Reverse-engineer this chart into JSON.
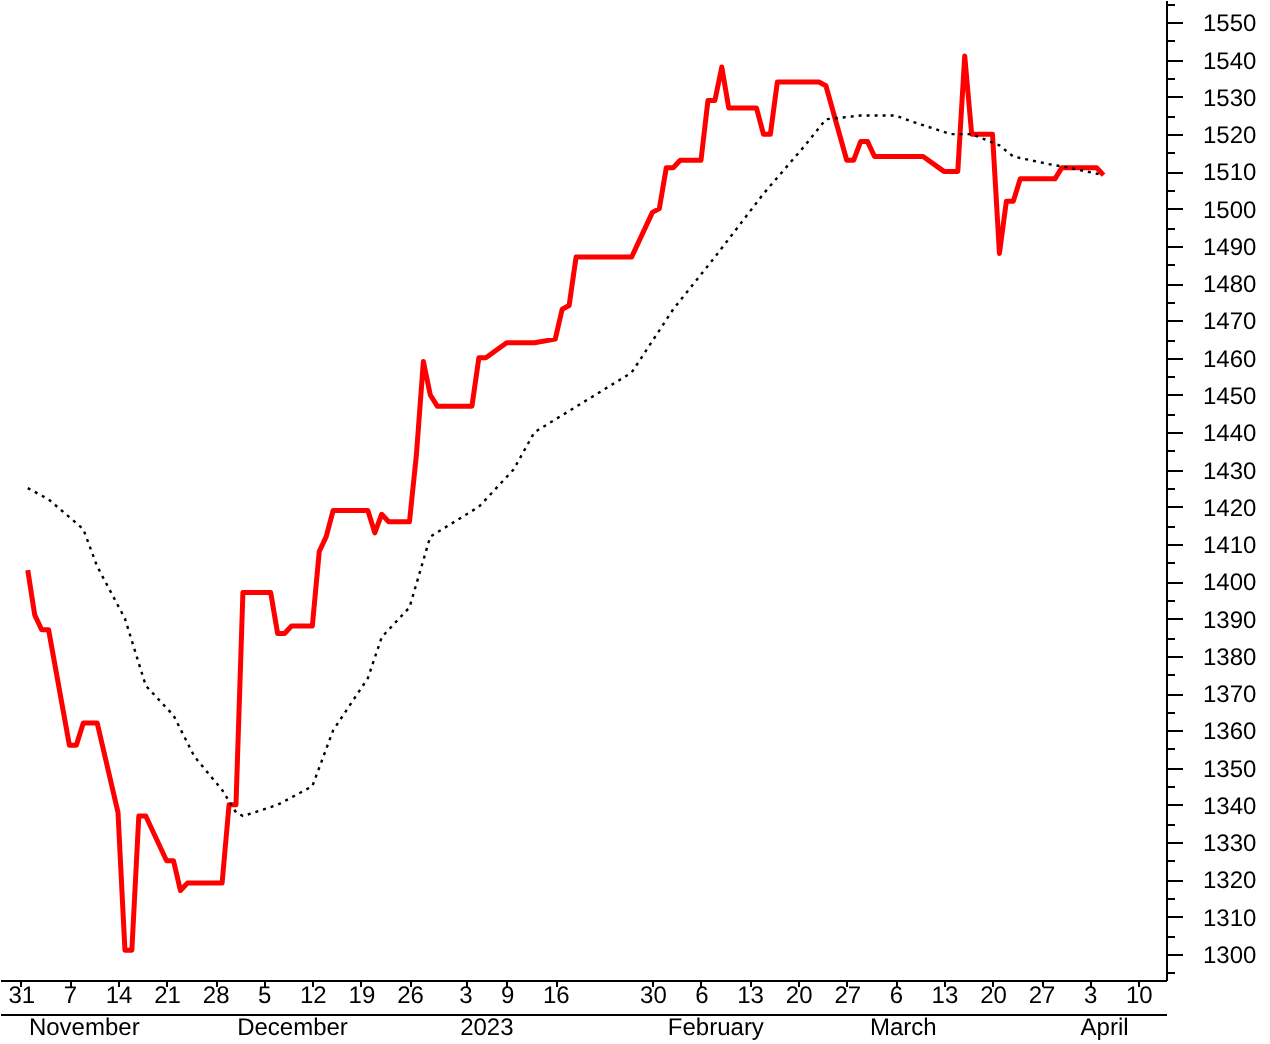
{
  "chart_data": {
    "type": "line",
    "series": [
      {
        "color": "#ff0000",
        "line_style": "solid",
        "x": [
          "2022-11-01",
          "2022-11-02",
          "2022-11-03",
          "2022-11-04",
          "2022-11-07",
          "2022-11-08",
          "2022-11-09",
          "2022-11-10",
          "2022-11-11",
          "2022-11-14",
          "2022-11-15",
          "2022-11-16",
          "2022-11-17",
          "2022-11-18",
          "2022-11-21",
          "2022-11-22",
          "2022-11-23",
          "2022-11-24",
          "2022-11-25",
          "2022-11-28",
          "2022-11-29",
          "2022-11-30",
          "2022-12-01",
          "2022-12-02",
          "2022-12-05",
          "2022-12-06",
          "2022-12-07",
          "2022-12-08",
          "2022-12-09",
          "2022-12-12",
          "2022-12-13",
          "2022-12-14",
          "2022-12-15",
          "2022-12-16",
          "2022-12-19",
          "2022-12-20",
          "2022-12-21",
          "2022-12-22",
          "2022-12-23",
          "2022-12-26",
          "2022-12-27",
          "2022-12-28",
          "2022-12-29",
          "2022-12-30",
          "2023-01-03",
          "2023-01-04",
          "2023-01-05",
          "2023-01-06",
          "2023-01-09",
          "2023-01-10",
          "2023-01-11",
          "2023-01-12",
          "2023-01-13",
          "2023-01-16",
          "2023-01-17",
          "2023-01-18",
          "2023-01-19",
          "2023-01-27",
          "2023-01-30",
          "2023-01-31",
          "2023-02-01",
          "2023-02-02",
          "2023-02-03",
          "2023-02-06",
          "2023-02-07",
          "2023-02-08",
          "2023-02-09",
          "2023-02-10",
          "2023-02-13",
          "2023-02-14",
          "2023-02-15",
          "2023-02-16",
          "2023-02-17",
          "2023-02-20",
          "2023-02-21",
          "2023-02-22",
          "2023-02-23",
          "2023-02-24",
          "2023-02-27",
          "2023-02-28",
          "2023-03-01",
          "2023-03-02",
          "2023-03-03",
          "2023-03-06",
          "2023-03-07",
          "2023-03-08",
          "2023-03-09",
          "2023-03-10",
          "2023-03-13",
          "2023-03-14",
          "2023-03-15",
          "2023-03-16",
          "2023-03-17",
          "2023-03-20",
          "2023-03-21",
          "2023-03-22",
          "2023-03-23",
          "2023-03-24",
          "2023-03-27",
          "2023-03-28",
          "2023-03-29",
          "2023-03-30",
          "2023-03-31",
          "2023-04-03",
          "2023-04-04",
          "2023-04-05"
        ],
        "values": [
          1403,
          1391,
          1387,
          1387,
          1356,
          1356,
          1362,
          1362,
          1362,
          1338,
          1301,
          1301,
          1337,
          1337,
          1325,
          1325,
          1317,
          1319,
          1319,
          1319,
          1319,
          1340,
          1340,
          1397,
          1397,
          1397,
          1386,
          1386,
          1388,
          1388,
          1408,
          1412,
          1419,
          1419,
          1419,
          1419,
          1413,
          1418,
          1416,
          1416,
          1434,
          1459,
          1450,
          1447,
          1447,
          1447,
          1460,
          1460,
          1464,
          1464,
          1464,
          1464,
          1464,
          1465,
          1473,
          1474,
          1487,
          1487,
          1499,
          1500,
          1511,
          1511,
          1513,
          1513,
          1529,
          1529,
          1538,
          1527,
          1527,
          1527,
          1520,
          1520,
          1534,
          1534,
          1534,
          1534,
          1534,
          1533,
          1513,
          1513,
          1518,
          1518,
          1514,
          1514,
          1514,
          1514,
          1514,
          1514,
          1510,
          1510,
          1510,
          1541,
          1520,
          1520,
          1488,
          1502,
          1502,
          1508,
          1508,
          1508,
          1508,
          1511,
          1511,
          1511,
          1511,
          1509
        ]
      },
      {
        "color": "#000000",
        "line_style": "dotted",
        "x": [
          "2022-11-01",
          "2022-11-04",
          "2022-11-09",
          "2022-11-11",
          "2022-11-15",
          "2022-11-18",
          "2022-11-22",
          "2022-11-25",
          "2022-11-29",
          "2022-12-01",
          "2022-12-02",
          "2022-12-07",
          "2022-12-12",
          "2022-12-15",
          "2022-12-20",
          "2022-12-22",
          "2022-12-26",
          "2022-12-29",
          "2023-01-05",
          "2023-01-10",
          "2023-01-13",
          "2023-01-27",
          "2023-02-02",
          "2023-02-08",
          "2023-02-15",
          "2023-02-21",
          "2023-02-24",
          "2023-03-01",
          "2023-03-06",
          "2023-03-09",
          "2023-03-14",
          "2023-03-17",
          "2023-03-21",
          "2023-03-23",
          "2023-03-28",
          "2023-03-31",
          "2023-04-05"
        ],
        "values": [
          1425,
          1422,
          1414,
          1404,
          1390,
          1372,
          1364,
          1353,
          1344,
          1338,
          1337,
          1340,
          1345,
          1360,
          1374,
          1385,
          1393,
          1412,
          1420,
          1430,
          1440,
          1456,
          1473,
          1487,
          1504,
          1517,
          1524,
          1525,
          1525,
          1523,
          1520,
          1520,
          1517,
          1514,
          1512,
          1511,
          1509
        ]
      }
    ],
    "xlim": [
      "2022-10-28",
      "2023-04-14"
    ],
    "xticks": [
      {
        "value": "2022-10-31",
        "label": "31"
      },
      {
        "value": "2022-11-07",
        "label": "7"
      },
      {
        "value": "2022-11-14",
        "label": "14"
      },
      {
        "value": "2022-11-21",
        "label": "21"
      },
      {
        "value": "2022-11-28",
        "label": "28"
      },
      {
        "value": "2022-12-05",
        "label": "5"
      },
      {
        "value": "2022-12-12",
        "label": "12"
      },
      {
        "value": "2022-12-19",
        "label": "19"
      },
      {
        "value": "2022-12-26",
        "label": "26"
      },
      {
        "value": "2023-01-03",
        "label": "3"
      },
      {
        "value": "2023-01-09",
        "label": "9"
      },
      {
        "value": "2023-01-16",
        "label": "16"
      },
      {
        "value": "2023-01-30",
        "label": "30"
      },
      {
        "value": "2023-02-06",
        "label": "6"
      },
      {
        "value": "2023-02-13",
        "label": "13"
      },
      {
        "value": "2023-02-20",
        "label": "20"
      },
      {
        "value": "2023-02-27",
        "label": "27"
      },
      {
        "value": "2023-03-06",
        "label": "6"
      },
      {
        "value": "2023-03-13",
        "label": "13"
      },
      {
        "value": "2023-03-20",
        "label": "20"
      },
      {
        "value": "2023-03-27",
        "label": "27"
      },
      {
        "value": "2023-04-03",
        "label": "3"
      },
      {
        "value": "2023-04-10",
        "label": "10"
      }
    ],
    "x2lim": [
      "2022-10-28",
      "2023-04-14"
    ],
    "x2ticks": [
      {
        "value": "2022-11-09",
        "label": "November"
      },
      {
        "value": "2022-12-09",
        "label": "December"
      },
      {
        "value": "2023-01-06",
        "label": "2023"
      },
      {
        "value": "2023-02-08",
        "label": "February"
      },
      {
        "value": "2023-03-07",
        "label": "March"
      },
      {
        "value": "2023-04-05",
        "label": "April"
      }
    ],
    "ylim": [
      1293,
      1556
    ],
    "yticks": [
      {
        "value": 1295,
        "label": null
      },
      1300,
      {
        "value": 1305,
        "label": null
      },
      1310,
      {
        "value": 1315,
        "label": null
      },
      1320,
      {
        "value": 1325,
        "label": null
      },
      1330,
      {
        "value": 1335,
        "label": null
      },
      1340,
      {
        "value": 1345,
        "label": null
      },
      1350,
      {
        "value": 1355,
        "label": null
      },
      1360,
      {
        "value": 1365,
        "label": null
      },
      1370,
      {
        "value": 1375,
        "label": null
      },
      1380,
      {
        "value": 1385,
        "label": null
      },
      1390,
      {
        "value": 1395,
        "label": null
      },
      1400,
      {
        "value": 1405,
        "label": null
      },
      1410,
      {
        "value": 1415,
        "label": null
      },
      1420,
      {
        "value": 1425,
        "label": null
      },
      1430,
      {
        "value": 1435,
        "label": null
      },
      1440,
      {
        "value": 1445,
        "label": null
      },
      1450,
      {
        "value": 1455,
        "label": null
      },
      1460,
      {
        "value": 1465,
        "label": null
      },
      1470,
      {
        "value": 1475,
        "label": null
      },
      1480,
      {
        "value": 1485,
        "label": null
      },
      1490,
      {
        "value": 1495,
        "label": null
      },
      1500,
      {
        "value": 1505,
        "label": null
      },
      1510,
      {
        "value": 1515,
        "label": null
      },
      1520,
      {
        "value": 1525,
        "label": null
      },
      1530,
      {
        "value": 1535,
        "label": null
      },
      1540,
      {
        "value": 1545,
        "label": null
      },
      1550,
      {
        "value": 1555,
        "label": null
      }
    ],
    "grid": false
  }
}
